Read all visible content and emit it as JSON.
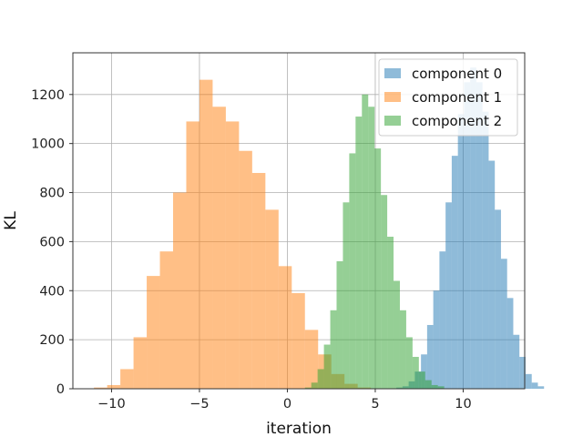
{
  "chart_data": {
    "type": "bar",
    "subtype": "overlapping-histogram",
    "title": "",
    "xlabel": "iteration",
    "ylabel": "KL",
    "xlim": [
      -12.2,
      13.5
    ],
    "ylim": [
      0,
      1370
    ],
    "xticks": [
      -10,
      -5,
      0,
      5,
      10
    ],
    "xtick_labels": [
      "−10",
      "−5",
      "0",
      "5",
      "10"
    ],
    "yticks": [
      0,
      200,
      400,
      600,
      800,
      1000,
      1200
    ],
    "ytick_labels": [
      "0",
      "200",
      "400",
      "600",
      "800",
      "1000",
      "1200"
    ],
    "grid": true,
    "legend_position": "top-right",
    "series": [
      {
        "name": "component 0",
        "color": "#1f77b4",
        "alpha": 0.5,
        "bin_start": 6.2,
        "bin_width": 0.35,
        "values": [
          5,
          10,
          30,
          70,
          140,
          260,
          400,
          560,
          760,
          950,
          1120,
          1250,
          1310,
          1250,
          1130,
          930,
          730,
          530,
          370,
          220,
          130,
          60,
          25,
          10
        ]
      },
      {
        "name": "component 1",
        "color": "#ff7f0e",
        "alpha": 0.5,
        "bin_start": -11.0,
        "bin_width": 0.75,
        "values": [
          5,
          15,
          80,
          210,
          460,
          560,
          800,
          1090,
          1260,
          1150,
          1090,
          970,
          880,
          730,
          500,
          390,
          240,
          140,
          60,
          20,
          5
        ]
      },
      {
        "name": "component 2",
        "color": "#2ca02c",
        "alpha": 0.5,
        "bin_start": 1.0,
        "bin_width": 0.36,
        "values": [
          5,
          25,
          80,
          180,
          320,
          520,
          760,
          960,
          1110,
          1200,
          1150,
          980,
          790,
          620,
          440,
          320,
          210,
          130,
          70,
          35,
          15,
          10
        ]
      }
    ]
  }
}
